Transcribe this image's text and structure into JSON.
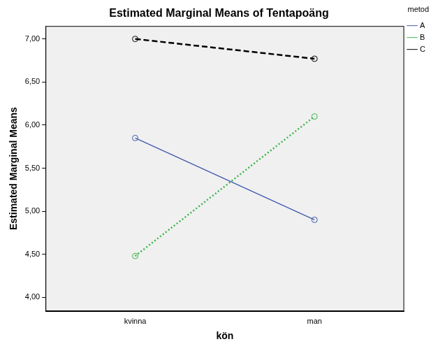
{
  "chart_data": {
    "type": "line",
    "title": "Estimated Marginal Means of Tentapoäng",
    "x_label": "kön",
    "y_label": "Estimated Marginal Means",
    "categories": [
      "kvinna",
      "man"
    ],
    "series": [
      {
        "name": "A",
        "color": "#3e58ac",
        "values": [
          5.85,
          4.9
        ],
        "line_style": "solid",
        "marker": "circle"
      },
      {
        "name": "B",
        "color": "#3ab54a",
        "values": [
          4.48,
          6.1
        ],
        "line_style": "dotted",
        "marker": "circle"
      },
      {
        "name": "C",
        "color": "#000000",
        "values": [
          7.0,
          6.77
        ],
        "line_style": "dashed",
        "marker": "circle"
      }
    ],
    "ylim": [
      3.84,
      7.15
    ],
    "yticks": [
      {
        "value": 4,
        "label": "4,00"
      },
      {
        "value": 4.5,
        "label": "4,50"
      },
      {
        "value": 5,
        "label": "5,00"
      },
      {
        "value": 5.5,
        "label": "5,50"
      },
      {
        "value": 6,
        "label": "6,00"
      },
      {
        "value": 6.5,
        "label": "6,50"
      },
      {
        "value": 7,
        "label": "7,00"
      }
    ],
    "grid": false,
    "legend": "right",
    "legend_title": "metod"
  }
}
